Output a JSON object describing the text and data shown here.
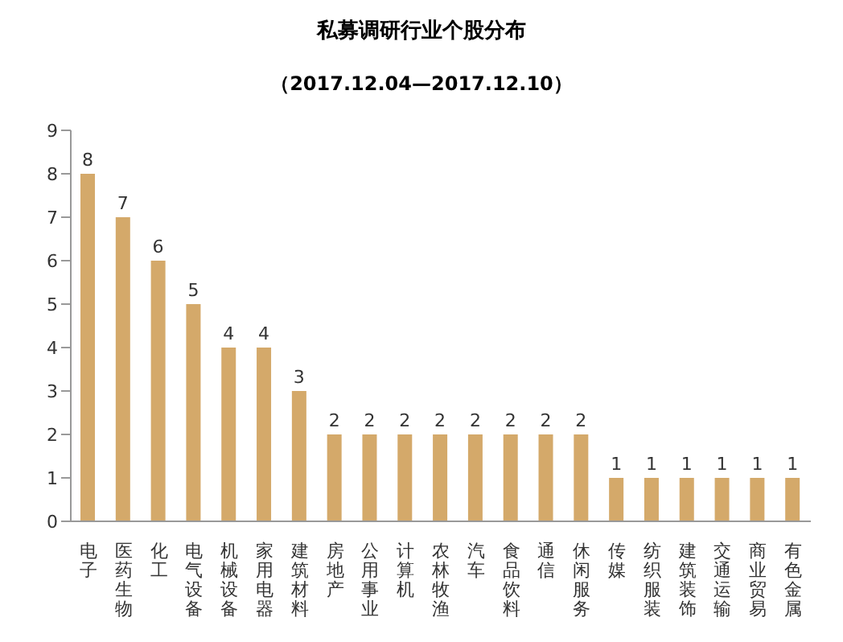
{
  "chart_data": {
    "type": "bar",
    "title": "私募调研行业个股分布",
    "subtitle": "（2017.12.04—2017.12.10）",
    "categories": [
      "电子",
      "医药生物",
      "化工",
      "电气设备",
      "机械设备",
      "家用电器",
      "建筑材料",
      "房地产",
      "公用事业",
      "计算机",
      "农林牧渔",
      "汽车",
      "食品饮料",
      "通信",
      "休闲服务",
      "传媒",
      "纺织服装",
      "建筑装饰",
      "交通运输",
      "商业贸易",
      "有色金属"
    ],
    "values": [
      8,
      7,
      6,
      5,
      4,
      4,
      3,
      2,
      2,
      2,
      2,
      2,
      2,
      2,
      2,
      1,
      1,
      1,
      1,
      1,
      1
    ],
    "color": "#d4a96a",
    "ylim": [
      0,
      9
    ],
    "yticks": [
      0,
      1,
      2,
      3,
      4,
      5,
      6,
      7,
      8,
      9
    ],
    "grid": false,
    "data_labels": true
  }
}
